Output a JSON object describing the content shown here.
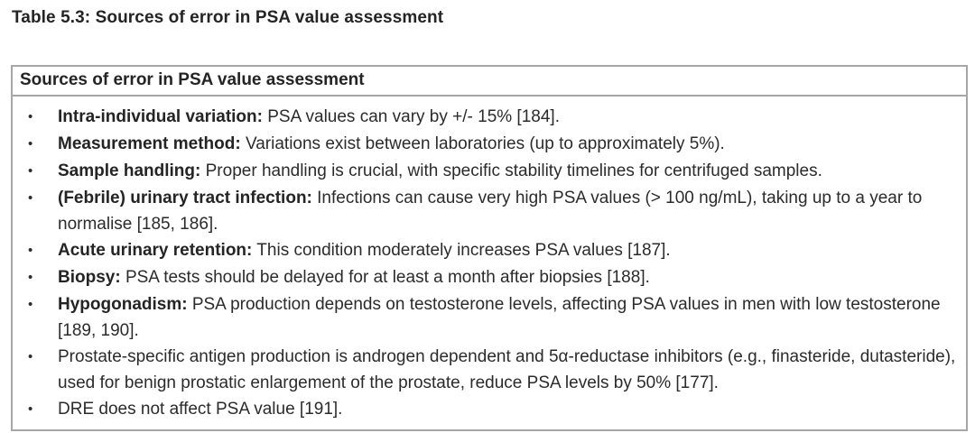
{
  "page": {
    "title": "Table 5.3: Sources of error in PSA value assessment"
  },
  "table": {
    "header": "Sources of error in PSA value assessment",
    "bullet": "•",
    "rows": [
      {
        "term": "Intra-individual variation:",
        "text": " PSA values can vary by +/- 15% [184]."
      },
      {
        "term": "Measurement method:",
        "text": " Variations exist between laboratories (up to approximately 5%)."
      },
      {
        "term": "Sample handling:",
        "text": " Proper handling is crucial, with specific stability timelines for centrifuged samples."
      },
      {
        "term": "(Febrile) urinary tract infection:",
        "text": " Infections can cause very high PSA values (> 100 ng/mL), taking up to a year to normalise [185, 186]."
      },
      {
        "term": "Acute urinary retention:",
        "text": " This condition moderately increases PSA values [187]."
      },
      {
        "term": "Biopsy:",
        "text": " PSA tests should be delayed for at least a month after biopsies [188]."
      },
      {
        "term": "Hypogonadism:",
        "text": " PSA production depends on testosterone levels, affecting PSA values in men with low testosterone [189, 190]."
      },
      {
        "term": "",
        "text": "Prostate-specific antigen production is androgen dependent and 5α-reductase inhibitors (e.g., finasteride, dutasteride), used for benign prostatic enlargement of the prostate, reduce PSA levels by 50% [177]."
      },
      {
        "term": "",
        "text": "DRE does not affect PSA value [191]."
      }
    ]
  }
}
